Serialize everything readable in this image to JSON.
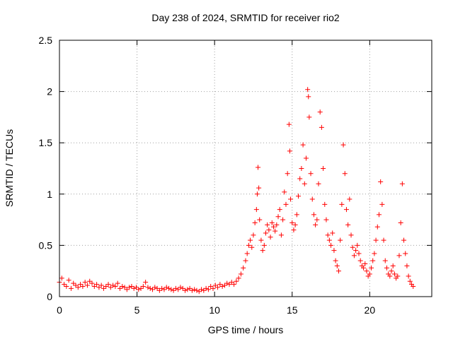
{
  "chart_data": {
    "type": "scatter",
    "title": "Day 238 of 2024, SRMTID for receiver rio2",
    "xlabel": "GPS time / hours",
    "ylabel": "SRMTID / TECUs",
    "xlim": [
      0,
      24
    ],
    "ylim": [
      0,
      2.5
    ],
    "xticks": [
      0,
      5,
      10,
      15,
      20
    ],
    "xtick_labels": [
      "0",
      "5",
      "10",
      "15",
      "20"
    ],
    "yticks": [
      0,
      0.5,
      1,
      1.5,
      2,
      2.5
    ],
    "ytick_labels": [
      "0",
      "0.5",
      "1",
      "1.5",
      "2",
      "2.5"
    ],
    "grid": true,
    "marker": "+",
    "series": [
      {
        "name": "SRMTID",
        "color": "#ff0000",
        "x": [
          0.0,
          0.15,
          0.3,
          0.45,
          0.6,
          0.75,
          0.9,
          1.05,
          1.2,
          1.35,
          1.5,
          1.65,
          1.8,
          1.95,
          2.1,
          2.25,
          2.4,
          2.55,
          2.7,
          2.85,
          3.0,
          3.15,
          3.3,
          3.45,
          3.6,
          3.75,
          3.9,
          4.05,
          4.2,
          4.35,
          4.5,
          4.65,
          4.8,
          4.95,
          5.1,
          5.25,
          5.4,
          5.55,
          5.7,
          5.85,
          6.0,
          6.15,
          6.3,
          6.45,
          6.6,
          6.75,
          6.9,
          7.05,
          7.2,
          7.35,
          7.5,
          7.65,
          7.8,
          7.95,
          8.1,
          8.25,
          8.4,
          8.55,
          8.7,
          8.85,
          9.0,
          9.15,
          9.3,
          9.45,
          9.6,
          9.75,
          9.9,
          10.05,
          10.2,
          10.35,
          10.5,
          10.65,
          10.8,
          10.95,
          11.1,
          11.25,
          11.4,
          11.55,
          11.7,
          11.85,
          12.0,
          12.1,
          12.2,
          12.3,
          12.4,
          12.5,
          12.6,
          12.7,
          12.75,
          12.8,
          12.85,
          12.9,
          13.0,
          13.1,
          13.2,
          13.3,
          13.4,
          13.5,
          13.6,
          13.7,
          13.8,
          13.9,
          14.0,
          14.1,
          14.2,
          14.3,
          14.4,
          14.5,
          14.6,
          14.7,
          14.8,
          14.85,
          14.9,
          15.0,
          15.1,
          15.2,
          15.3,
          15.4,
          15.5,
          15.6,
          15.7,
          15.8,
          15.9,
          16.0,
          16.05,
          16.1,
          16.2,
          16.3,
          16.4,
          16.5,
          16.6,
          16.7,
          16.8,
          16.9,
          17.0,
          17.1,
          17.2,
          17.3,
          17.4,
          17.5,
          17.6,
          17.7,
          17.8,
          17.9,
          18.0,
          18.1,
          18.2,
          18.3,
          18.4,
          18.5,
          18.6,
          18.7,
          18.8,
          18.9,
          19.0,
          19.1,
          19.2,
          19.3,
          19.4,
          19.5,
          19.6,
          19.7,
          19.8,
          19.9,
          20.0,
          20.1,
          20.2,
          20.3,
          20.4,
          20.5,
          20.6,
          20.7,
          20.8,
          20.9,
          21.0,
          21.1,
          21.2,
          21.3,
          21.4,
          21.5,
          21.6,
          21.7,
          21.8,
          21.9,
          22.0,
          22.1,
          22.2,
          22.3,
          22.4,
          22.5,
          22.6,
          22.7,
          22.8
        ],
        "y": [
          0.14,
          0.18,
          0.12,
          0.1,
          0.16,
          0.08,
          0.13,
          0.11,
          0.09,
          0.12,
          0.1,
          0.14,
          0.11,
          0.15,
          0.13,
          0.1,
          0.12,
          0.09,
          0.11,
          0.08,
          0.1,
          0.12,
          0.09,
          0.11,
          0.1,
          0.13,
          0.08,
          0.1,
          0.09,
          0.07,
          0.09,
          0.1,
          0.08,
          0.09,
          0.07,
          0.08,
          0.1,
          0.14,
          0.09,
          0.08,
          0.07,
          0.09,
          0.08,
          0.06,
          0.08,
          0.07,
          0.09,
          0.08,
          0.07,
          0.06,
          0.08,
          0.07,
          0.09,
          0.08,
          0.06,
          0.07,
          0.08,
          0.06,
          0.07,
          0.06,
          0.05,
          0.07,
          0.06,
          0.08,
          0.07,
          0.1,
          0.08,
          0.11,
          0.09,
          0.12,
          0.1,
          0.11,
          0.13,
          0.12,
          0.14,
          0.12,
          0.15,
          0.18,
          0.22,
          0.28,
          0.35,
          0.42,
          0.5,
          0.55,
          0.48,
          0.6,
          0.72,
          0.85,
          1.0,
          1.26,
          1.06,
          0.75,
          0.55,
          0.45,
          0.5,
          0.62,
          0.7,
          0.65,
          0.58,
          0.72,
          0.68,
          0.64,
          0.7,
          0.78,
          0.85,
          0.6,
          0.75,
          1.02,
          0.9,
          1.2,
          1.68,
          1.42,
          0.95,
          0.72,
          0.65,
          0.7,
          0.8,
          0.98,
          1.15,
          1.25,
          1.48,
          1.1,
          1.35,
          2.02,
          1.95,
          1.75,
          1.2,
          0.95,
          0.8,
          0.7,
          0.75,
          1.1,
          1.8,
          1.65,
          1.25,
          0.9,
          0.75,
          0.6,
          0.55,
          0.5,
          0.62,
          0.45,
          0.35,
          0.3,
          0.25,
          0.55,
          0.9,
          1.48,
          1.2,
          0.85,
          0.7,
          0.95,
          0.6,
          0.48,
          0.4,
          0.45,
          0.5,
          0.42,
          0.35,
          0.3,
          0.28,
          0.32,
          0.25,
          0.2,
          0.22,
          0.28,
          0.35,
          0.42,
          0.55,
          0.68,
          0.8,
          1.12,
          0.9,
          0.55,
          0.35,
          0.28,
          0.22,
          0.2,
          0.25,
          0.3,
          0.22,
          0.18,
          0.2,
          0.4,
          0.72,
          1.1,
          0.55,
          0.42,
          0.3,
          0.2,
          0.15,
          0.12,
          0.1
        ]
      }
    ]
  }
}
